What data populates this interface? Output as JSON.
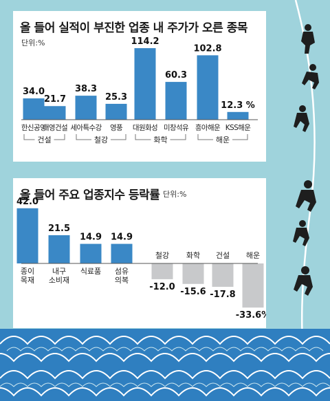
{
  "colors": {
    "bar_positive": "#3a88c6",
    "bar_negative": "#c8c9cb",
    "sea": "#9fd3dc",
    "wave_dark": "#2f7fc0",
    "wave_light": "#ffffff",
    "climber": "#1e1e1e"
  },
  "icons": [
    "climber-silhouette-icon",
    "rope-icon",
    "wave-pattern-icon"
  ],
  "chart_data": [
    {
      "type": "bar",
      "title": "올 들어 실적이 부진한 업종 내 주가가 오른 종목",
      "unit": "단위:%",
      "categories": [
        "한신공영",
        "태영건설",
        "세아특수강",
        "영풍",
        "대원화성",
        "미창석유",
        "흥아해운",
        "KSS해운"
      ],
      "values": [
        34.0,
        21.7,
        38.3,
        25.3,
        114.2,
        60.3,
        102.8,
        12.3
      ],
      "value_labels": [
        "34.0",
        "21.7",
        "38.3",
        "25.3",
        "114.2",
        "60.3",
        "102.8",
        "12.3 %"
      ],
      "groups": [
        {
          "label": "건설",
          "members": [
            0,
            1
          ]
        },
        {
          "label": "철강",
          "members": [
            2,
            3
          ]
        },
        {
          "label": "화학",
          "members": [
            4,
            5
          ]
        },
        {
          "label": "해운",
          "members": [
            6,
            7
          ]
        }
      ],
      "ylim": [
        0,
        120
      ],
      "grid": false
    },
    {
      "type": "bar",
      "title": "올 들어 주요 업종지수 등락률",
      "unit": "단위:%",
      "categories": [
        "종이\n목재",
        "내구\n소비재",
        "식료품",
        "섬유\n의복",
        "철강",
        "화학",
        "건설",
        "해운"
      ],
      "values": [
        42.0,
        21.5,
        14.9,
        14.9,
        -12.0,
        -15.6,
        -17.8,
        -33.6
      ],
      "value_labels": [
        "42.0",
        "21.5",
        "14.9",
        "14.9",
        "-12.0",
        "-15.6",
        "-17.8",
        "-33.6%"
      ],
      "ylim": [
        -35,
        45
      ],
      "grid": false
    }
  ]
}
